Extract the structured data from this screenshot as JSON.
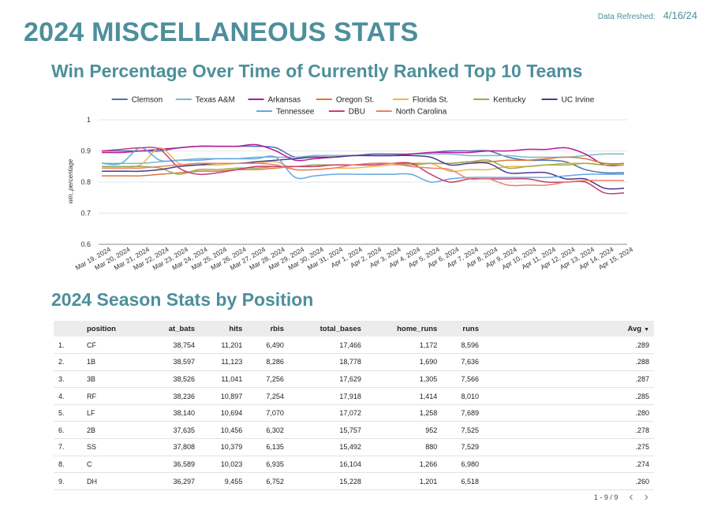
{
  "header": {
    "refresh_label": "Data Refreshed:",
    "refresh_date": "4/16/24",
    "page_title": "2024 MISCELLANEOUS STATS"
  },
  "chart_title": "Win Percentage Over Time of Currently Ranked Top 10 Teams",
  "table_title": "2024 Season Stats by Position",
  "chart_data": {
    "type": "line",
    "ylabel": "win_percentage",
    "ylim": [
      0.6,
      1
    ],
    "yticks": [
      "0.6",
      "0.7",
      "0.8",
      "0.9",
      "1"
    ],
    "legend_position": "top",
    "x": [
      "Mar 19, 2024",
      "Mar 20, 2024",
      "Mar 21, 2024",
      "Mar 22, 2024",
      "Mar 23, 2024",
      "Mar 24, 2024",
      "Mar 25, 2024",
      "Mar 26, 2024",
      "Mar 27, 2024",
      "Mar 28, 2024",
      "Mar 29, 2024",
      "Mar 30, 2024",
      "Mar 31, 2024",
      "Apr 1, 2024",
      "Apr 2, 2024",
      "Apr 3, 2024",
      "Apr 4, 2024",
      "Apr 5, 2024",
      "Apr 6, 2024",
      "Apr 7, 2024",
      "Apr 8, 2024",
      "Apr 9, 2024",
      "Apr 10, 2024",
      "Apr 11, 2024",
      "Apr 12, 2024",
      "Apr 13, 2024",
      "Apr 14, 2024",
      "Apr 15, 2024"
    ],
    "series": [
      {
        "name": "Clemson",
        "color": "#4e6fb4",
        "values": [
          0.9,
          0.9,
          0.9,
          0.9,
          0.91,
          0.915,
          0.915,
          0.915,
          0.915,
          0.91,
          0.88,
          0.885,
          0.885,
          0.885,
          0.89,
          0.89,
          0.89,
          0.895,
          0.9,
          0.9,
          0.9,
          0.88,
          0.87,
          0.87,
          0.865,
          0.84,
          0.83,
          0.83
        ]
      },
      {
        "name": "Texas A&M",
        "color": "#79b8c8",
        "values": [
          0.86,
          0.86,
          0.86,
          0.865,
          0.87,
          0.875,
          0.875,
          0.875,
          0.88,
          0.88,
          0.88,
          0.885,
          0.885,
          0.885,
          0.885,
          0.885,
          0.89,
          0.89,
          0.89,
          0.885,
          0.885,
          0.885,
          0.88,
          0.88,
          0.88,
          0.885,
          0.89,
          0.89
        ]
      },
      {
        "name": "Arkansas",
        "color": "#b7199a",
        "values": [
          0.895,
          0.895,
          0.9,
          0.905,
          0.91,
          0.915,
          0.915,
          0.915,
          0.92,
          0.9,
          0.87,
          0.875,
          0.88,
          0.885,
          0.885,
          0.885,
          0.89,
          0.895,
          0.895,
          0.895,
          0.9,
          0.9,
          0.905,
          0.905,
          0.91,
          0.89,
          0.855,
          0.855
        ]
      },
      {
        "name": "Oregon St.",
        "color": "#d97a3b",
        "values": [
          0.82,
          0.82,
          0.82,
          0.825,
          0.83,
          0.835,
          0.835,
          0.84,
          0.84,
          0.845,
          0.85,
          0.85,
          0.855,
          0.855,
          0.86,
          0.86,
          0.86,
          0.86,
          0.86,
          0.865,
          0.865,
          0.87,
          0.87,
          0.875,
          0.88,
          0.875,
          0.86,
          0.86
        ]
      },
      {
        "name": "Florida St.",
        "color": "#eeb546",
        "values": [
          0.85,
          0.85,
          0.855,
          0.91,
          0.86,
          0.855,
          0.855,
          0.86,
          0.86,
          0.865,
          0.84,
          0.84,
          0.845,
          0.845,
          0.85,
          0.855,
          0.855,
          0.86,
          0.835,
          0.84,
          0.84,
          0.85,
          0.85,
          0.855,
          0.86,
          0.86,
          0.855,
          0.855
        ]
      },
      {
        "name": "Kentucky",
        "color": "#97ab4e",
        "values": [
          0.85,
          0.85,
          0.85,
          0.845,
          0.825,
          0.84,
          0.84,
          0.845,
          0.845,
          0.85,
          0.85,
          0.855,
          0.855,
          0.855,
          0.86,
          0.86,
          0.855,
          0.86,
          0.86,
          0.865,
          0.87,
          0.845,
          0.85,
          0.855,
          0.855,
          0.86,
          0.855,
          0.855
        ]
      },
      {
        "name": "UC Irvine",
        "color": "#4b3a8e",
        "values": [
          0.835,
          0.835,
          0.835,
          0.84,
          0.85,
          0.855,
          0.86,
          0.86,
          0.865,
          0.87,
          0.875,
          0.88,
          0.88,
          0.885,
          0.885,
          0.885,
          0.885,
          0.88,
          0.855,
          0.86,
          0.86,
          0.83,
          0.83,
          0.83,
          0.81,
          0.81,
          0.78,
          0.78
        ]
      },
      {
        "name": "Tennessee",
        "color": "#62a8e3",
        "values": [
          0.86,
          0.86,
          0.91,
          0.87,
          0.87,
          0.87,
          0.875,
          0.875,
          0.875,
          0.88,
          0.815,
          0.82,
          0.825,
          0.825,
          0.825,
          0.825,
          0.825,
          0.8,
          0.81,
          0.815,
          0.815,
          0.815,
          0.815,
          0.815,
          0.82,
          0.825,
          0.825,
          0.825
        ]
      },
      {
        "name": "DBU",
        "color": "#c63f72",
        "values": [
          0.9,
          0.905,
          0.91,
          0.905,
          0.845,
          0.825,
          0.83,
          0.84,
          0.85,
          0.85,
          0.85,
          0.85,
          0.855,
          0.855,
          0.855,
          0.86,
          0.86,
          0.825,
          0.8,
          0.81,
          0.81,
          0.81,
          0.81,
          0.8,
          0.8,
          0.8,
          0.765,
          0.765
        ]
      },
      {
        "name": "North Carolina",
        "color": "#e8806a",
        "values": [
          0.845,
          0.845,
          0.845,
          0.85,
          0.855,
          0.86,
          0.86,
          0.86,
          0.86,
          0.855,
          0.84,
          0.84,
          0.845,
          0.855,
          0.86,
          0.86,
          0.85,
          0.845,
          0.84,
          0.81,
          0.81,
          0.79,
          0.79,
          0.79,
          0.8,
          0.805,
          0.805,
          0.805
        ]
      }
    ]
  },
  "table": {
    "columns": [
      {
        "key": "idx",
        "label": ""
      },
      {
        "key": "position",
        "label": "position"
      },
      {
        "key": "at_bats",
        "label": "at_bats"
      },
      {
        "key": "hits",
        "label": "hits"
      },
      {
        "key": "rbis",
        "label": "rbis"
      },
      {
        "key": "total_bases",
        "label": "total_bases"
      },
      {
        "key": "home_runs",
        "label": "home_runs"
      },
      {
        "key": "runs",
        "label": "runs"
      },
      {
        "key": "avg",
        "label": "Avg"
      }
    ],
    "sort_icon": "sort-desc-icon",
    "rows": [
      {
        "idx": "1.",
        "position": "CF",
        "at_bats": "38,754",
        "hits": "11,201",
        "rbis": "6,490",
        "total_bases": "17,466",
        "home_runs": "1,172",
        "runs": "8,596",
        "avg": ".289"
      },
      {
        "idx": "2.",
        "position": "1B",
        "at_bats": "38,597",
        "hits": "11,123",
        "rbis": "8,286",
        "total_bases": "18,778",
        "home_runs": "1,690",
        "runs": "7,636",
        "avg": ".288"
      },
      {
        "idx": "3.",
        "position": "3B",
        "at_bats": "38,526",
        "hits": "11,041",
        "rbis": "7,256",
        "total_bases": "17,629",
        "home_runs": "1,305",
        "runs": "7,566",
        "avg": ".287"
      },
      {
        "idx": "4.",
        "position": "RF",
        "at_bats": "38,236",
        "hits": "10,897",
        "rbis": "7,254",
        "total_bases": "17,918",
        "home_runs": "1,414",
        "runs": "8,010",
        "avg": ".285"
      },
      {
        "idx": "5.",
        "position": "LF",
        "at_bats": "38,140",
        "hits": "10,694",
        "rbis": "7,070",
        "total_bases": "17,072",
        "home_runs": "1,258",
        "runs": "7,689",
        "avg": ".280"
      },
      {
        "idx": "6.",
        "position": "2B",
        "at_bats": "37,635",
        "hits": "10,456",
        "rbis": "6,302",
        "total_bases": "15,757",
        "home_runs": "952",
        "runs": "7,525",
        "avg": ".278"
      },
      {
        "idx": "7.",
        "position": "SS",
        "at_bats": "37,808",
        "hits": "10,379",
        "rbis": "6,135",
        "total_bases": "15,492",
        "home_runs": "880",
        "runs": "7,529",
        "avg": ".275"
      },
      {
        "idx": "8.",
        "position": "C",
        "at_bats": "36,589",
        "hits": "10,023",
        "rbis": "6,935",
        "total_bases": "16,104",
        "home_runs": "1,266",
        "runs": "6,980",
        "avg": ".274"
      },
      {
        "idx": "9.",
        "position": "DH",
        "at_bats": "36,297",
        "hits": "9,455",
        "rbis": "6,752",
        "total_bases": "15,228",
        "home_runs": "1,201",
        "runs": "6,518",
        "avg": ".260"
      }
    ]
  },
  "pager": {
    "range": "1 - 9 / 9",
    "prev_icon": "chevron-left-icon",
    "next_icon": "chevron-right-icon"
  }
}
